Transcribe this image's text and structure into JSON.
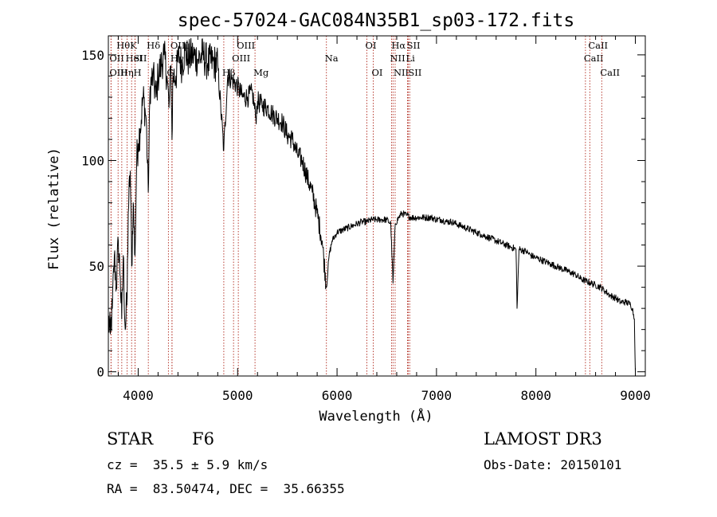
{
  "chart_data": {
    "type": "line",
    "title": "spec-57024-GAC084N35B1_sp03-172.fits",
    "xlabel": "Wavelength (Å)",
    "ylabel": "Flux (relative)",
    "xlim": [
      3700,
      9100
    ],
    "ylim": [
      -2,
      159
    ],
    "x_ticks": [
      4000,
      5000,
      6000,
      7000,
      8000,
      9000
    ],
    "x_tick_labels": [
      "4000",
      "5000",
      "6000",
      "7000",
      "8000",
      "9000"
    ],
    "y_ticks": [
      0,
      50,
      100,
      150
    ],
    "y_tick_labels": [
      "0",
      "50",
      "100",
      "150"
    ],
    "series": [
      {
        "name": "spectrum",
        "points": [
          [
            3700,
            25
          ],
          [
            3720,
            18
          ],
          [
            3740,
            30
          ],
          [
            3760,
            55
          ],
          [
            3780,
            40
          ],
          [
            3800,
            62
          ],
          [
            3820,
            45
          ],
          [
            3835,
            25
          ],
          [
            3850,
            55
          ],
          [
            3870,
            20
          ],
          [
            3889,
            35
          ],
          [
            3900,
            75
          ],
          [
            3920,
            95
          ],
          [
            3935,
            50
          ],
          [
            3950,
            80
          ],
          [
            3968,
            55
          ],
          [
            3985,
            100
          ],
          [
            4000,
            108
          ],
          [
            4020,
            115
          ],
          [
            4050,
            130
          ],
          [
            4080,
            120
          ],
          [
            4101,
            85
          ],
          [
            4120,
            135
          ],
          [
            4150,
            140
          ],
          [
            4180,
            130
          ],
          [
            4200,
            140
          ],
          [
            4230,
            145
          ],
          [
            4260,
            150
          ],
          [
            4290,
            140
          ],
          [
            4310,
            125
          ],
          [
            4330,
            145
          ],
          [
            4340,
            110
          ],
          [
            4350,
            140
          ],
          [
            4380,
            140
          ],
          [
            4410,
            150
          ],
          [
            4440,
            145
          ],
          [
            4470,
            152
          ],
          [
            4500,
            148
          ],
          [
            4550,
            150
          ],
          [
            4600,
            148
          ],
          [
            4650,
            150
          ],
          [
            4700,
            146
          ],
          [
            4750,
            147
          ],
          [
            4800,
            145
          ],
          [
            4861,
            105
          ],
          [
            4900,
            140
          ],
          [
            4950,
            138
          ],
          [
            5000,
            135
          ],
          [
            5050,
            130
          ],
          [
            5100,
            130
          ],
          [
            5150,
            132
          ],
          [
            5183,
            120
          ],
          [
            5200,
            128
          ],
          [
            5250,
            126
          ],
          [
            5300,
            125
          ],
          [
            5350,
            122
          ],
          [
            5400,
            120
          ],
          [
            5450,
            118
          ],
          [
            5500,
            112
          ],
          [
            5550,
            110
          ],
          [
            5600,
            103
          ],
          [
            5650,
            100
          ],
          [
            5700,
            92
          ],
          [
            5750,
            85
          ],
          [
            5800,
            75
          ],
          [
            5850,
            62
          ],
          [
            5893,
            40
          ],
          [
            5920,
            55
          ],
          [
            5950,
            62
          ],
          [
            6000,
            66
          ],
          [
            6050,
            67
          ],
          [
            6100,
            68
          ],
          [
            6150,
            69
          ],
          [
            6200,
            70
          ],
          [
            6250,
            71
          ],
          [
            6300,
            71
          ],
          [
            6350,
            72
          ],
          [
            6400,
            72
          ],
          [
            6450,
            72
          ],
          [
            6500,
            72
          ],
          [
            6540,
            70
          ],
          [
            6563,
            42
          ],
          [
            6585,
            70
          ],
          [
            6620,
            73
          ],
          [
            6650,
            75
          ],
          [
            6700,
            74
          ],
          [
            6750,
            73
          ],
          [
            6800,
            73
          ],
          [
            6850,
            73
          ],
          [
            6900,
            73
          ],
          [
            6950,
            73
          ],
          [
            7000,
            72
          ],
          [
            7050,
            72
          ],
          [
            7100,
            71
          ],
          [
            7150,
            71
          ],
          [
            7200,
            70
          ],
          [
            7250,
            69
          ],
          [
            7300,
            68
          ],
          [
            7350,
            67
          ],
          [
            7400,
            66
          ],
          [
            7450,
            65
          ],
          [
            7500,
            64
          ],
          [
            7550,
            63
          ],
          [
            7600,
            62
          ],
          [
            7650,
            61
          ],
          [
            7700,
            60
          ],
          [
            7750,
            59
          ],
          [
            7800,
            58
          ],
          [
            7810,
            30
          ],
          [
            7830,
            58
          ],
          [
            7900,
            57
          ],
          [
            7950,
            55
          ],
          [
            8000,
            54
          ],
          [
            8050,
            53
          ],
          [
            8100,
            52
          ],
          [
            8150,
            51
          ],
          [
            8200,
            50
          ],
          [
            8250,
            49
          ],
          [
            8300,
            48
          ],
          [
            8350,
            47
          ],
          [
            8400,
            46
          ],
          [
            8450,
            44
          ],
          [
            8500,
            43
          ],
          [
            8550,
            42
          ],
          [
            8600,
            41
          ],
          [
            8650,
            40
          ],
          [
            8700,
            38
          ],
          [
            8750,
            36
          ],
          [
            8800,
            35
          ],
          [
            8850,
            33
          ],
          [
            8900,
            33
          ],
          [
            8950,
            32
          ],
          [
            8970,
            30
          ],
          [
            8990,
            25
          ],
          [
            9000,
            0
          ]
        ]
      }
    ],
    "line_markers": [
      {
        "label": "Hθ",
        "wavelength": 3798,
        "row": 1
      },
      {
        "label": "OII",
        "wavelength": 3727,
        "row": 2
      },
      {
        "label": "OIII",
        "wavelength": 3727,
        "row": 3
      },
      {
        "label": "Hη",
        "wavelength": 3835,
        "row": 3
      },
      {
        "label": "HeI",
        "wavelength": 3889,
        "row": 2
      },
      {
        "label": "K",
        "wavelength": 3934,
        "row": 1
      },
      {
        "label": "SII",
        "wavelength": 3968,
        "row": 2
      },
      {
        "label": "H",
        "wavelength": 3968,
        "row": 3
      },
      {
        "label": "Hδ",
        "wavelength": 4102,
        "row": 1
      },
      {
        "label": "OIII",
        "wavelength": 4340,
        "row": 1
      },
      {
        "label": "Hγ",
        "wavelength": 4340,
        "row": 2
      },
      {
        "label": "G",
        "wavelength": 4304,
        "row": 3
      },
      {
        "label": "Hβ",
        "wavelength": 4861,
        "row": 3
      },
      {
        "label": "OIII",
        "wavelength": 5007,
        "row": 1
      },
      {
        "label": "OIII",
        "wavelength": 4959,
        "row": 2
      },
      {
        "label": "Mg",
        "wavelength": 5175,
        "row": 3
      },
      {
        "label": "Na",
        "wavelength": 5893,
        "row": 2
      },
      {
        "label": "OI",
        "wavelength": 6300,
        "row": 1
      },
      {
        "label": "OI",
        "wavelength": 6364,
        "row": 3
      },
      {
        "label": "Hα",
        "wavelength": 6563,
        "row": 1
      },
      {
        "label": "NII",
        "wavelength": 6548,
        "row": 2
      },
      {
        "label": "NII",
        "wavelength": 6584,
        "row": 3
      },
      {
        "label": "SII",
        "wavelength": 6717,
        "row": 1
      },
      {
        "label": "Li",
        "wavelength": 6708,
        "row": 2
      },
      {
        "label": "SII",
        "wavelength": 6731,
        "row": 3
      },
      {
        "label": "CaII",
        "wavelength": 8542,
        "row": 1
      },
      {
        "label": "CaII",
        "wavelength": 8498,
        "row": 2
      },
      {
        "label": "CaII",
        "wavelength": 8662,
        "row": 3
      }
    ]
  },
  "info": {
    "object_class": "STAR",
    "subclass": "F6",
    "survey": "LAMOST DR3",
    "redshift": "cz =  35.5 ± 5.9 km/s",
    "obs_date": "Obs-Date: 20150101",
    "coordinates": "RA =  83.50474, DEC =  35.66355"
  },
  "colors": {
    "spectrum": "#000000",
    "marker": "#b0281c",
    "axis": "#000000",
    "background": "#ffffff"
  }
}
